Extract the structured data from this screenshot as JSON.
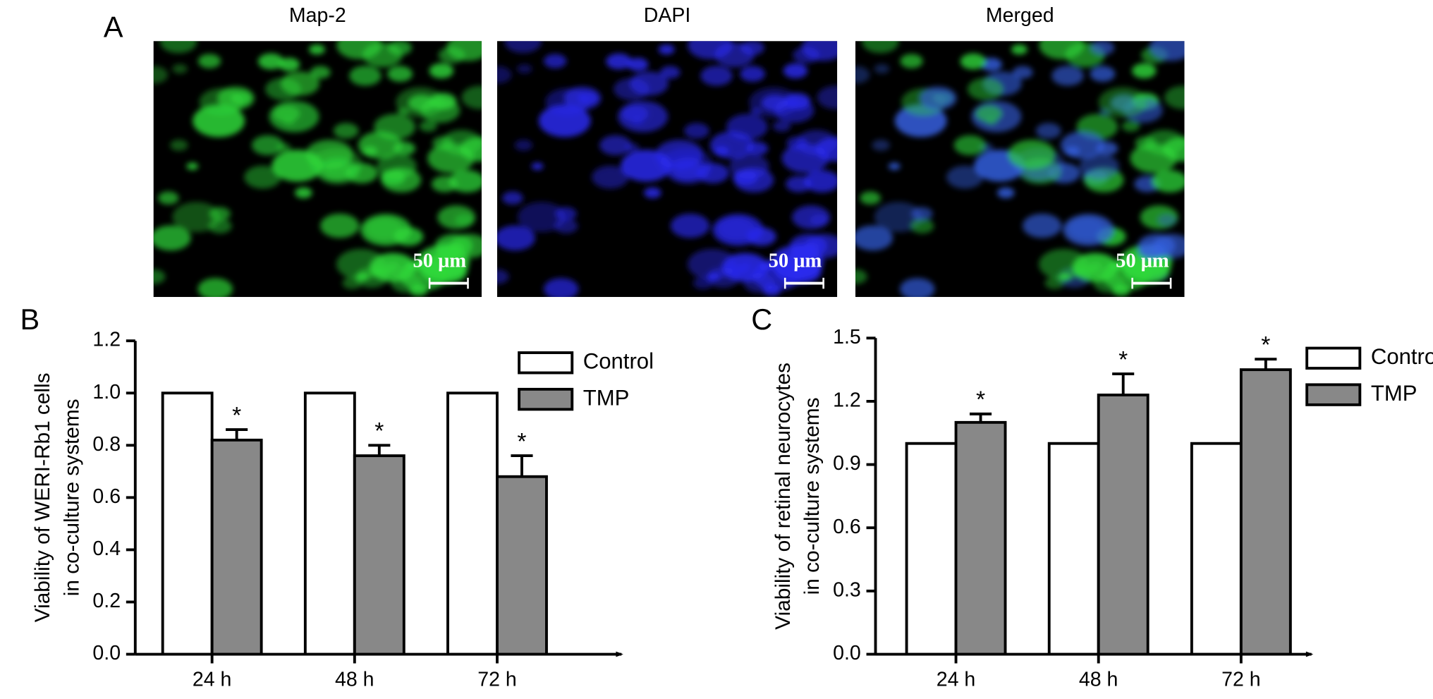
{
  "panel_a": {
    "label": "A",
    "images": [
      {
        "title": "Map-2",
        "scale_bar": "50 μm"
      },
      {
        "title": "DAPI",
        "scale_bar": "50 μm"
      },
      {
        "title": "Merged",
        "scale_bar": "50 μm"
      }
    ]
  },
  "chart_data": [
    {
      "type": "bar",
      "panel_label": "B",
      "y_label": [
        "Viability of WERI-Rb1 cells",
        "in co-culture systems"
      ],
      "categories": [
        "24 h",
        "48 h",
        "72 h"
      ],
      "series": [
        {
          "name": "Control",
          "color": "#ffffff",
          "values": [
            1,
            1,
            1
          ]
        },
        {
          "name": "TMP",
          "color": "#888888",
          "values": [
            0.82,
            0.76,
            0.68
          ],
          "errors": [
            0.04,
            0.04,
            0.08
          ],
          "annotations": [
            "*",
            "*",
            "*"
          ]
        }
      ],
      "ylim": [
        0,
        1.2
      ],
      "yticks": [
        {
          "value": 0,
          "label": "0.0"
        },
        0.2,
        0.4,
        0.6,
        0.8,
        {
          "value": 1,
          "label": "1.0"
        },
        1.2
      ],
      "legend": "upper right"
    },
    {
      "type": "bar",
      "panel_label": "C",
      "y_label": [
        "Viability of retinal neurocytes",
        "in co-culture systems"
      ],
      "categories": [
        "24 h",
        "48 h",
        "72 h"
      ],
      "series": [
        {
          "name": "Control",
          "color": "#ffffff",
          "values": [
            1,
            1,
            1
          ]
        },
        {
          "name": "TMP",
          "color": "#888888",
          "values": [
            1.1,
            1.23,
            1.35
          ],
          "errors": [
            0.04,
            0.1,
            0.05
          ],
          "annotations": [
            "*",
            "*",
            "*"
          ]
        }
      ],
      "ylim": [
        0,
        1.5
      ],
      "yticks": [
        {
          "value": 0,
          "label": "0.0"
        },
        0.3,
        0.6,
        0.9,
        1.2,
        1.5
      ],
      "legend": "upper right"
    }
  ]
}
